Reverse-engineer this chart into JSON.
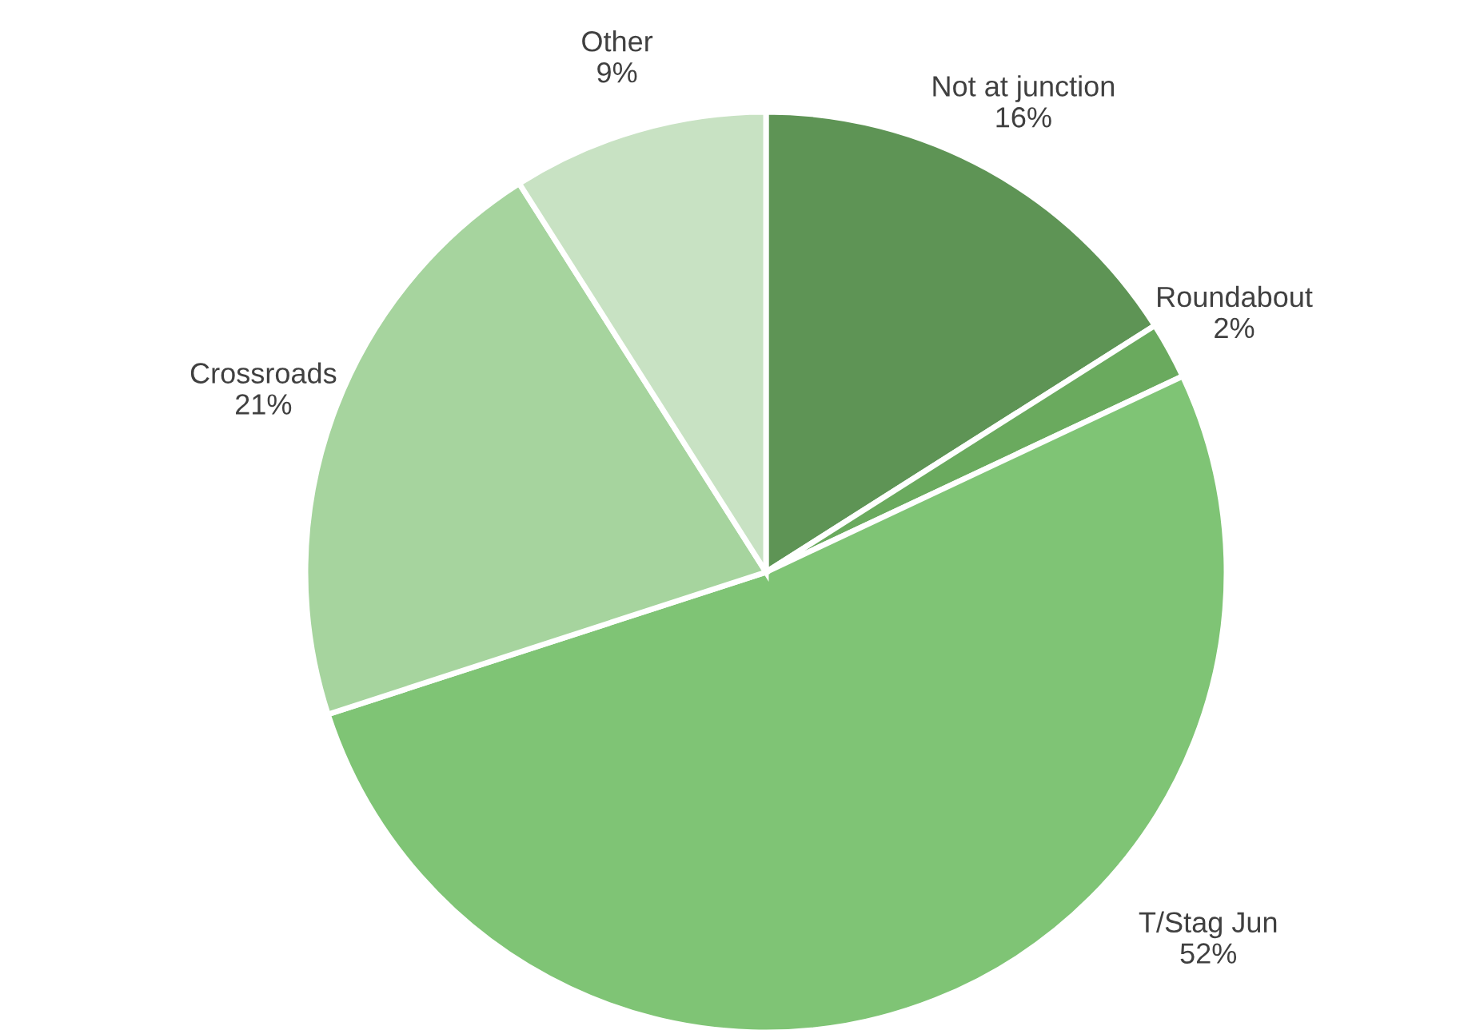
{
  "chart_data": {
    "type": "pie",
    "categories": [
      "Not at junction",
      "Roundabout",
      "T/Stag Jun",
      "Crossroads",
      "Other"
    ],
    "values": [
      16,
      2,
      52,
      21,
      9
    ],
    "value_labels": [
      "16%",
      "2%",
      "52%",
      "21%",
      "9%"
    ],
    "colors": [
      "#5e9455",
      "#6aaa5e",
      "#7fc475",
      "#a6d49e",
      "#c8e2c3"
    ],
    "legend": false
  }
}
